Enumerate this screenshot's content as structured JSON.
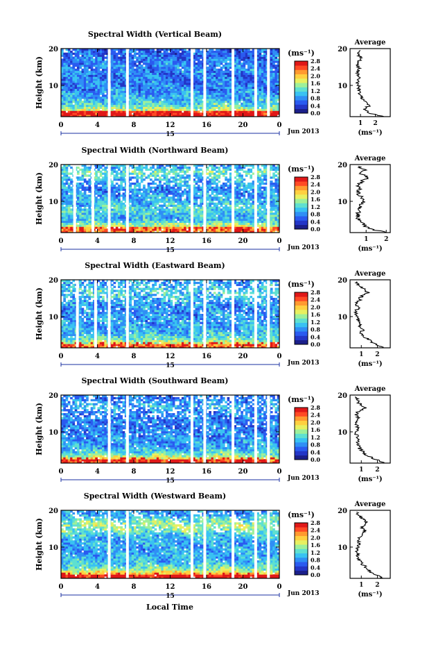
{
  "figure": {
    "xlabel_bottom": "Local Time",
    "date_label": "Jun 2013",
    "colorbar": {
      "unit": "(ms⁻¹)",
      "ticks": [
        "0.0",
        "0.4",
        "0.8",
        "1.2",
        "1.6",
        "2.0",
        "2.4",
        "2.8"
      ],
      "colors": [
        "#1b1f8a",
        "#2336c7",
        "#2a5bf0",
        "#2f8ff5",
        "#39c2f2",
        "#5fe0d0",
        "#9ef09a",
        "#e8f060",
        "#ffd040",
        "#ff9a30",
        "#ff4a25",
        "#e01818"
      ]
    },
    "x_ticks": [
      "0",
      "4",
      "8",
      "12",
      "16",
      "20",
      "0"
    ],
    "x_day_label": "15",
    "y_ticks": [
      "20",
      "10"
    ],
    "ylabel": "Height (km)",
    "avg_title": "Average",
    "avg_unit": "(ms⁻¹)"
  },
  "chart_data": [
    {
      "type": "heatmap",
      "title": "Spectral Width (Vertical Beam)",
      "xlabel": "Local Time",
      "ylabel": "Height (km)",
      "xlim": [
        0,
        24
      ],
      "ylim": [
        1.5,
        20
      ],
      "zlim": [
        0.0,
        2.8
      ],
      "color_unit": "ms⁻¹",
      "gap_hours": [
        5.3,
        7.3,
        14.4,
        15.8,
        18.9,
        21.4,
        22.8
      ],
      "z_rows": [
        [
          3.0,
          2.2
        ],
        [
          3.5,
          1.6
        ],
        [
          5.0,
          1.2
        ],
        [
          7.0,
          0.9
        ],
        [
          9.0,
          0.8
        ],
        [
          12.0,
          0.7
        ],
        [
          15.0,
          0.8
        ],
        [
          17.0,
          0.7
        ],
        [
          19.0,
          0.6
        ]
      ],
      "avg_profile": {
        "x_ticks": [
          1,
          2
        ],
        "xlim": [
          0.3,
          3.0
        ],
        "points": [
          [
            2.5,
            1.5
          ],
          [
            1.6,
            2.5
          ],
          [
            1.2,
            3.5
          ],
          [
            1.6,
            4.5
          ],
          [
            1.3,
            5.5
          ],
          [
            1.1,
            6.5
          ],
          [
            1.0,
            7.5
          ],
          [
            0.9,
            8.5
          ],
          [
            0.9,
            9.5
          ],
          [
            0.8,
            10.5
          ],
          [
            0.8,
            11.5
          ],
          [
            0.9,
            12.5
          ],
          [
            0.8,
            13.5
          ],
          [
            0.9,
            14.5
          ],
          [
            0.8,
            15.5
          ],
          [
            0.9,
            16.5
          ],
          [
            1.0,
            17.5
          ],
          [
            0.8,
            18.5
          ],
          [
            1.0,
            19.5
          ]
        ]
      }
    },
    {
      "type": "heatmap",
      "title": "Spectral Width (Northward Beam)",
      "xlabel": "Local Time",
      "ylabel": "Height (km)",
      "xlim": [
        0,
        24
      ],
      "ylim": [
        1.5,
        20
      ],
      "zlim": [
        0.0,
        2.8
      ],
      "color_unit": "ms⁻¹",
      "gap_hours": [
        1.5,
        3.5,
        5.3,
        7.3,
        14.4,
        15.8,
        18.9,
        21.4,
        22.8
      ],
      "z_rows": [
        [
          3.0,
          1.8
        ],
        [
          5.0,
          1.0
        ],
        [
          8.0,
          1.2
        ],
        [
          10.0,
          1.0
        ],
        [
          13.0,
          0.8
        ],
        [
          16.0,
          1.0
        ],
        [
          18.0,
          1.4
        ],
        [
          19.0,
          1.0
        ]
      ],
      "avg_profile": {
        "x_ticks": [
          1,
          2
        ],
        "xlim": [
          0.2,
          2.2
        ],
        "points": [
          [
            2.0,
            1.5
          ],
          [
            1.2,
            2.5
          ],
          [
            0.9,
            3.5
          ],
          [
            0.7,
            4.5
          ],
          [
            0.6,
            5.5
          ],
          [
            0.6,
            6.5
          ],
          [
            0.6,
            7.5
          ],
          [
            0.7,
            8.5
          ],
          [
            0.8,
            9.5
          ],
          [
            0.9,
            10.5
          ],
          [
            0.7,
            11.5
          ],
          [
            0.6,
            12.5
          ],
          [
            0.7,
            13.5
          ],
          [
            0.6,
            14.5
          ],
          [
            0.8,
            15.5
          ],
          [
            1.1,
            16.5
          ],
          [
            0.7,
            17.5
          ],
          [
            0.9,
            18.5
          ],
          [
            0.6,
            19.5
          ]
        ]
      }
    },
    {
      "type": "heatmap",
      "title": "Spectral Width (Eastward Beam)",
      "xlabel": "Local Time",
      "ylabel": "Height (km)",
      "xlim": [
        0,
        24
      ],
      "ylim": [
        1.5,
        20
      ],
      "zlim": [
        0.0,
        2.8
      ],
      "color_unit": "ms⁻¹",
      "gap_hours": [
        1.8,
        3.8,
        5.3,
        7.3,
        14.4,
        15.8,
        18.9,
        21.4,
        22.8
      ],
      "z_rows": [
        [
          2.5,
          1.8
        ],
        [
          4.0,
          1.3
        ],
        [
          6.0,
          1.0
        ],
        [
          9.0,
          0.9
        ],
        [
          12.0,
          0.8
        ],
        [
          15.0,
          1.0
        ],
        [
          17.0,
          1.2
        ],
        [
          19.0,
          0.9
        ]
      ],
      "avg_profile": {
        "x_ticks": [
          1,
          2
        ],
        "xlim": [
          0.3,
          2.8
        ],
        "points": [
          [
            2.4,
            1.5
          ],
          [
            1.9,
            2.5
          ],
          [
            1.5,
            3.5
          ],
          [
            1.2,
            4.5
          ],
          [
            1.0,
            5.5
          ],
          [
            1.1,
            6.5
          ],
          [
            0.9,
            7.5
          ],
          [
            0.8,
            8.5
          ],
          [
            0.8,
            9.5
          ],
          [
            0.7,
            10.5
          ],
          [
            0.7,
            11.5
          ],
          [
            0.8,
            12.5
          ],
          [
            0.7,
            13.5
          ],
          [
            0.9,
            14.5
          ],
          [
            1.0,
            15.5
          ],
          [
            1.4,
            16.5
          ],
          [
            1.2,
            17.5
          ],
          [
            0.8,
            18.5
          ],
          [
            0.7,
            19.5
          ]
        ]
      }
    },
    {
      "type": "heatmap",
      "title": "Spectral Width (Southward Beam)",
      "xlabel": "Local Time",
      "ylabel": "Height (km)",
      "xlim": [
        0,
        24
      ],
      "ylim": [
        1.5,
        20
      ],
      "zlim": [
        0.0,
        2.8
      ],
      "color_unit": "ms⁻¹",
      "gap_hours": [
        5.3,
        7.3,
        14.4,
        15.8,
        18.9,
        21.4,
        22.8
      ],
      "z_rows": [
        [
          2.5,
          2.0
        ],
        [
          4.0,
          1.3
        ],
        [
          6.0,
          0.9
        ],
        [
          9.0,
          0.8
        ],
        [
          12.0,
          0.7
        ],
        [
          15.0,
          0.8
        ],
        [
          17.0,
          1.0
        ],
        [
          19.0,
          0.7
        ]
      ],
      "avg_profile": {
        "x_ticks": [
          1,
          2
        ],
        "xlim": [
          0.3,
          2.8
        ],
        "points": [
          [
            2.5,
            1.5
          ],
          [
            1.9,
            2.5
          ],
          [
            1.4,
            3.5
          ],
          [
            1.1,
            4.5
          ],
          [
            0.9,
            5.5
          ],
          [
            0.8,
            6.5
          ],
          [
            0.8,
            7.5
          ],
          [
            0.7,
            8.5
          ],
          [
            0.7,
            9.5
          ],
          [
            0.8,
            10.5
          ],
          [
            0.7,
            11.5
          ],
          [
            0.7,
            12.5
          ],
          [
            0.8,
            13.5
          ],
          [
            0.7,
            14.5
          ],
          [
            0.8,
            15.5
          ],
          [
            1.2,
            16.5
          ],
          [
            0.9,
            17.5
          ],
          [
            0.8,
            18.5
          ],
          [
            0.6,
            19.5
          ]
        ]
      }
    },
    {
      "type": "heatmap",
      "title": "Spectral Width (Westward Beam)",
      "xlabel": "Local Time",
      "ylabel": "Height (km)",
      "xlim": [
        0,
        24
      ],
      "ylim": [
        1.5,
        20
      ],
      "zlim": [
        0.0,
        2.8
      ],
      "color_unit": "ms⁻¹",
      "gap_hours": [
        5.3,
        7.3,
        14.4,
        15.8,
        18.9,
        21.4,
        22.8
      ],
      "z_rows": [
        [
          2.5,
          2.2
        ],
        [
          4.0,
          1.4
        ],
        [
          6.0,
          1.0
        ],
        [
          9.0,
          0.9
        ],
        [
          12.0,
          0.9
        ],
        [
          14.0,
          1.2
        ],
        [
          16.0,
          1.5
        ],
        [
          18.0,
          1.1
        ],
        [
          19.0,
          0.8
        ]
      ],
      "avg_profile": {
        "x_ticks": [
          1,
          2
        ],
        "xlim": [
          0.3,
          2.8
        ],
        "points": [
          [
            2.3,
            1.5
          ],
          [
            1.9,
            2.5
          ],
          [
            1.5,
            3.5
          ],
          [
            1.3,
            4.5
          ],
          [
            1.0,
            5.5
          ],
          [
            0.9,
            6.5
          ],
          [
            0.8,
            7.5
          ],
          [
            0.8,
            8.5
          ],
          [
            0.7,
            9.5
          ],
          [
            0.8,
            10.5
          ],
          [
            0.8,
            11.5
          ],
          [
            0.9,
            12.5
          ],
          [
            1.0,
            13.5
          ],
          [
            1.2,
            14.5
          ],
          [
            1.0,
            15.5
          ],
          [
            1.4,
            16.5
          ],
          [
            1.1,
            17.5
          ],
          [
            0.9,
            18.5
          ],
          [
            0.7,
            19.5
          ]
        ]
      }
    }
  ]
}
